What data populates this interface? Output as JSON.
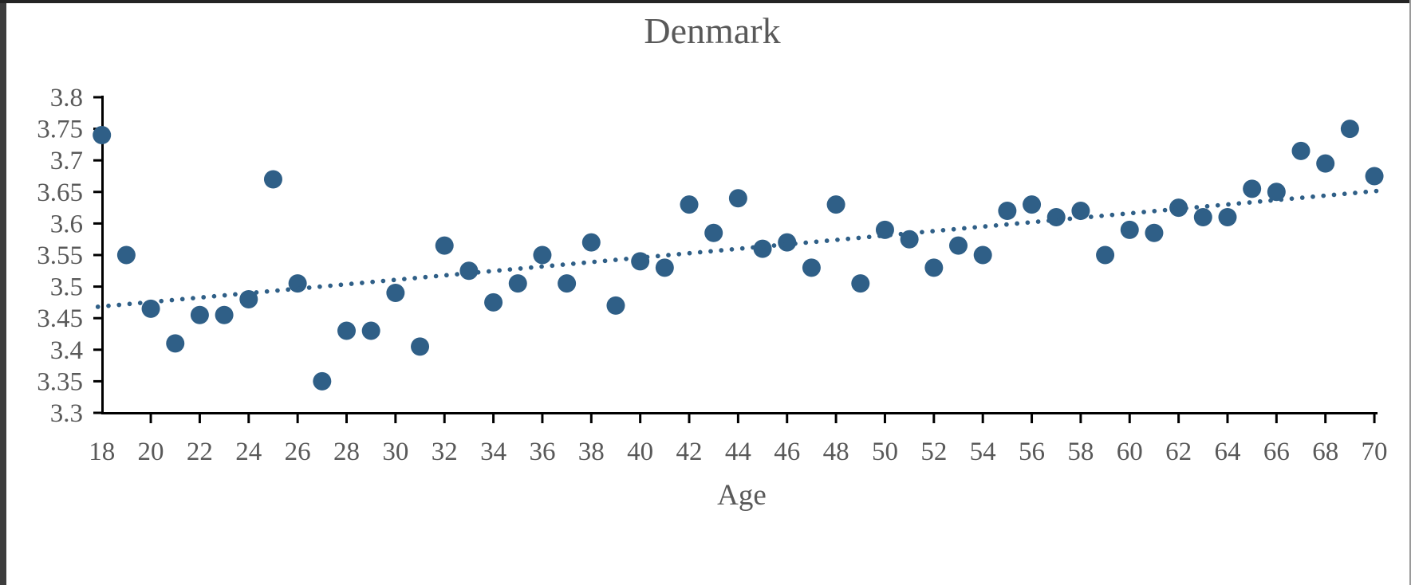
{
  "chart_data": {
    "type": "scatter",
    "title": "Denmark",
    "xlabel": "Age",
    "ylabel": "",
    "xlim": [
      18,
      70
    ],
    "ylim": [
      3.3,
      3.8
    ],
    "grid": false,
    "legend": null,
    "xticks": [
      18,
      20,
      22,
      24,
      26,
      28,
      30,
      32,
      34,
      36,
      38,
      40,
      42,
      44,
      46,
      48,
      50,
      52,
      54,
      56,
      58,
      60,
      62,
      64,
      66,
      68,
      70
    ],
    "ytick_labels_top_to_bottom": [
      "3.8",
      "3.75",
      "3.7",
      "3.65",
      "3.6",
      "3.55",
      "3.5",
      "3.45",
      "3.4",
      "3.35",
      "3.3"
    ],
    "x": [
      18,
      19,
      20,
      21,
      22,
      23,
      24,
      25,
      26,
      27,
      28,
      29,
      30,
      31,
      32,
      33,
      34,
      35,
      36,
      37,
      38,
      39,
      40,
      41,
      42,
      43,
      44,
      45,
      46,
      47,
      48,
      49,
      50,
      51,
      52,
      53,
      54,
      55,
      56,
      57,
      58,
      59,
      60,
      61,
      62,
      63,
      64,
      65,
      66,
      67,
      68,
      69,
      70
    ],
    "values": [
      3.74,
      3.55,
      3.465,
      3.41,
      3.455,
      3.455,
      3.48,
      3.67,
      3.505,
      3.35,
      3.43,
      3.43,
      3.49,
      3.405,
      3.565,
      3.525,
      3.475,
      3.505,
      3.55,
      3.505,
      3.57,
      3.47,
      3.54,
      3.53,
      3.63,
      3.585,
      3.64,
      3.56,
      3.57,
      3.53,
      3.63,
      3.505,
      3.59,
      3.575,
      3.53,
      3.565,
      3.55,
      3.62,
      3.63,
      3.61,
      3.62,
      3.55,
      3.59,
      3.585,
      3.625,
      3.61,
      3.61,
      3.655,
      3.65,
      3.715,
      3.695,
      3.75,
      3.675
    ],
    "trendline": {
      "style": "dotted",
      "x1": 18,
      "y1": 3.468,
      "x2": 70,
      "y2": 3.652
    },
    "marker_color": "#2F5F87",
    "axis_color": "#000000",
    "label_color": "#595959"
  }
}
